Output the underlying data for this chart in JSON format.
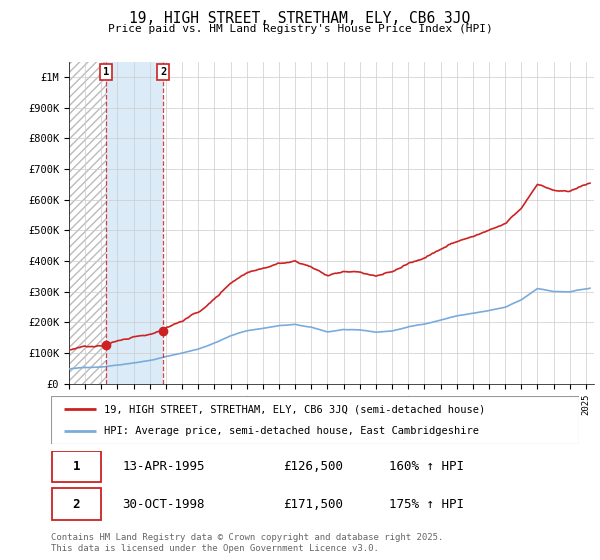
{
  "title": "19, HIGH STREET, STRETHAM, ELY, CB6 3JQ",
  "subtitle": "Price paid vs. HM Land Registry's House Price Index (HPI)",
  "ylim": [
    0,
    1000000
  ],
  "yticks": [
    0,
    100000,
    200000,
    300000,
    400000,
    500000,
    600000,
    700000,
    800000,
    900000,
    1000000
  ],
  "ytick_labels": [
    "£0",
    "£100K",
    "£200K",
    "£300K",
    "£400K",
    "£500K",
    "£600K",
    "£700K",
    "£800K",
    "£900K",
    "£1M"
  ],
  "hpi_color": "#7aabdb",
  "price_color": "#cc2222",
  "transaction1_date": 1995.28,
  "transaction1_price": 126500,
  "transaction2_date": 1998.83,
  "transaction2_price": 171500,
  "legend_property": "19, HIGH STREET, STRETHAM, ELY, CB6 3JQ (semi-detached house)",
  "legend_hpi": "HPI: Average price, semi-detached house, East Cambridgeshire",
  "table_rows": [
    {
      "num": "1",
      "date": "13-APR-1995",
      "price": "£126,500",
      "hpi": "160% ↑ HPI"
    },
    {
      "num": "2",
      "date": "30-OCT-1998",
      "price": "£171,500",
      "hpi": "175% ↑ HPI"
    }
  ],
  "footnote": "Contains HM Land Registry data © Crown copyright and database right 2025.\nThis data is licensed under the Open Government Licence v3.0.",
  "background_color": "#ffffff",
  "grid_color": "#cccccc",
  "hatch_region_color": "#d8e8f0",
  "solid_region_color": "#ddeeff"
}
